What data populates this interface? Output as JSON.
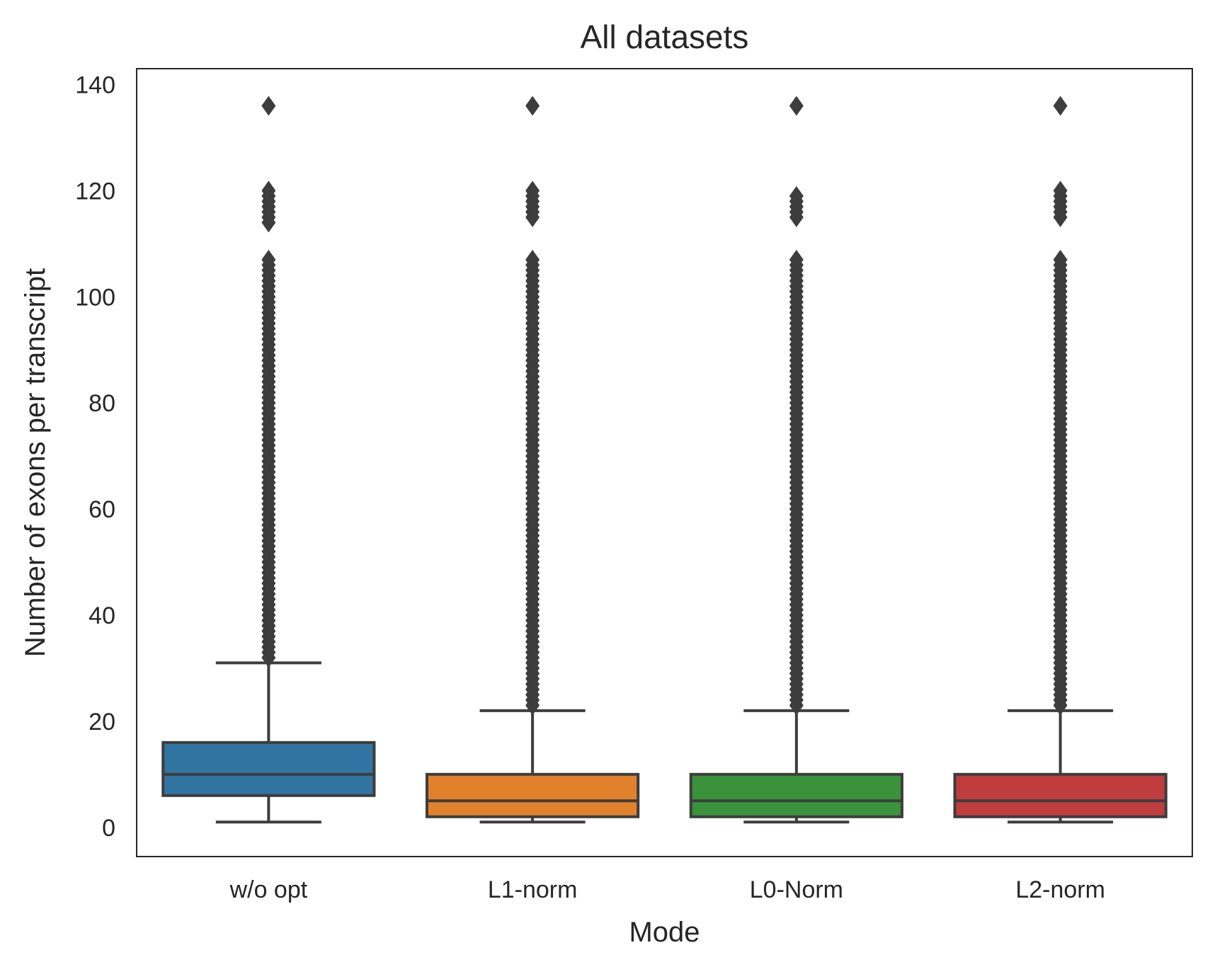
{
  "chart_data": {
    "type": "box",
    "title": "All datasets",
    "xlabel": "Mode",
    "ylabel": "Number of exons per transcript",
    "ylim": [
      -5.5,
      143
    ],
    "yticks": [
      0,
      20,
      40,
      60,
      80,
      100,
      120,
      140
    ],
    "grid": false,
    "legend": "none",
    "outlier_marker": "diamond",
    "line_color": "#3d3d3d",
    "categories": [
      "w/o opt",
      "L1-norm",
      "L0-Norm",
      "L2-norm"
    ],
    "series": [
      {
        "color": "#3274a1",
        "whisker_low": 1,
        "q1": 6,
        "median": 10,
        "q3": 16,
        "whisker_high": 31,
        "outlier_range": [
          32,
          107
        ],
        "outliers": [
          114,
          115,
          116,
          117,
          118,
          119,
          120,
          136
        ]
      },
      {
        "color": "#e1812c",
        "whisker_low": 1,
        "q1": 2,
        "median": 5,
        "q3": 10,
        "whisker_high": 22,
        "outlier_range": [
          23,
          107
        ],
        "outliers": [
          115,
          116,
          117,
          118,
          119,
          120,
          136
        ]
      },
      {
        "color": "#3a923a",
        "whisker_low": 1,
        "q1": 2,
        "median": 5,
        "q3": 10,
        "whisker_high": 22,
        "outlier_range": [
          23,
          107
        ],
        "outliers": [
          115,
          116,
          117,
          118,
          119,
          136
        ]
      },
      {
        "color": "#c03d3e",
        "whisker_low": 1,
        "q1": 2,
        "median": 5,
        "q3": 10,
        "whisker_high": 22,
        "outlier_range": [
          23,
          107
        ],
        "outliers": [
          115,
          116,
          117,
          118,
          119,
          120,
          136
        ]
      }
    ]
  }
}
